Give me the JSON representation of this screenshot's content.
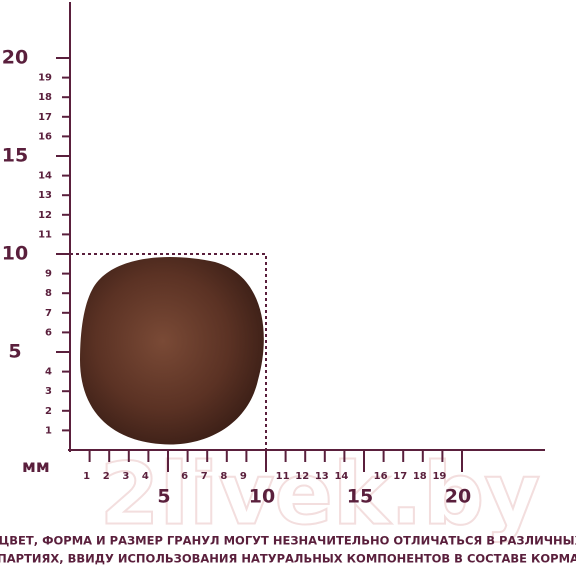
{
  "unit": "мм",
  "y_axis": {
    "ticks": [
      1,
      2,
      3,
      4,
      5,
      6,
      7,
      8,
      9,
      10,
      11,
      12,
      13,
      14,
      15,
      16,
      17,
      18,
      19,
      20
    ],
    "major": [
      5,
      10,
      15,
      20
    ]
  },
  "x_axis": {
    "ticks": [
      1,
      2,
      3,
      4,
      5,
      6,
      7,
      8,
      9,
      10,
      11,
      12,
      13,
      14,
      15,
      16,
      17,
      18,
      19,
      20
    ],
    "major": [
      5,
      10,
      15,
      20
    ]
  },
  "kibble_size": 10,
  "watermark": "2livek.by",
  "footnote": [
    "*ЦВЕТ, ФОРМА И РАЗМЕР ГРАНУЛ МОГУТ НЕЗНАЧИТЕЛЬНО ОТЛИЧАТЬСЯ В РАЗЛИЧНЫХ",
    "ПАРТИЯХ, ВВИДУ ИСПОЛЬЗОВАНИЯ НАТУРАЛЬНЫХ КОМПОНЕНТОВ В СОСТАВЕ КОРМА"
  ]
}
